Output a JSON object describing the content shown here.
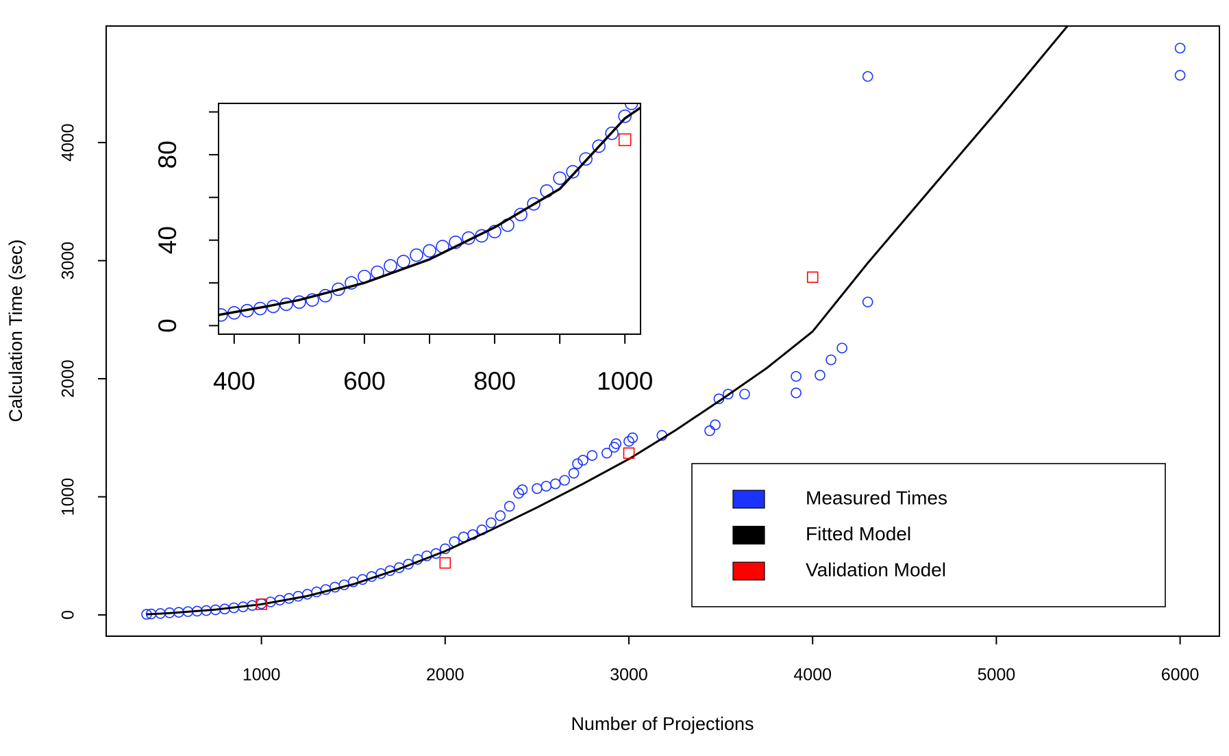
{
  "chart_data": [
    {
      "type": "scatter",
      "xlabel": "Number of Projections",
      "ylabel": "Calculation Time (sec)",
      "xlim": [
        155,
        6214
      ],
      "ylim": [
        -180,
        4987
      ],
      "xticks": [
        1000,
        2000,
        3000,
        4000,
        5000,
        6000
      ],
      "yticks": [
        0,
        1000,
        2000,
        3000,
        4000
      ],
      "legend_position": "bottom-right",
      "series": [
        {
          "name": "Measured Times",
          "color": "#1a33ff",
          "marker": "circle",
          "x": [
            375,
            400,
            450,
            500,
            550,
            600,
            650,
            700,
            750,
            800,
            850,
            900,
            950,
            1000,
            1050,
            1100,
            1150,
            1200,
            1250,
            1300,
            1350,
            1400,
            1450,
            1500,
            1550,
            1600,
            1650,
            1700,
            1750,
            1800,
            1850,
            1900,
            1950,
            2000,
            2050,
            2100,
            2150,
            2200,
            2250,
            2300,
            2350,
            2400,
            2420,
            2500,
            2550,
            2600,
            2650,
            2700,
            2720,
            2750,
            2800,
            2880,
            2920,
            2930,
            3000,
            3020,
            3180,
            3440,
            3470,
            3490,
            3540,
            3630,
            3910,
            3910,
            4040,
            4100,
            4160,
            4300,
            4300,
            6000,
            6000
          ],
          "values": [
            5,
            8,
            12,
            18,
            22,
            28,
            32,
            37,
            43,
            50,
            60,
            68,
            80,
            95,
            110,
            125,
            140,
            158,
            175,
            195,
            215,
            235,
            255,
            280,
            300,
            325,
            350,
            375,
            400,
            430,
            470,
            500,
            520,
            560,
            620,
            660,
            680,
            720,
            780,
            840,
            920,
            1030,
            1060,
            1070,
            1090,
            1110,
            1140,
            1200,
            1280,
            1310,
            1350,
            1370,
            1420,
            1450,
            1470,
            1500,
            1520,
            1560,
            1610,
            1830,
            1870,
            1870,
            1880,
            2020,
            2030,
            2160,
            2260,
            2650,
            4560,
            4570,
            4800
          ]
        },
        {
          "name": "Fitted Model",
          "color": "#000000",
          "marker": "line",
          "x": [
            375,
            500,
            750,
            1000,
            1250,
            1500,
            1750,
            2000,
            2250,
            2500,
            2750,
            3000,
            3250,
            3500,
            3750,
            4000,
            4300,
            4650,
            5000,
            5387
          ],
          "values": [
            5,
            15,
            45,
            90,
            160,
            260,
            390,
            540,
            720,
            910,
            1110,
            1320,
            1560,
            1820,
            2090,
            2400,
            2980,
            3620,
            4260,
            4987
          ]
        },
        {
          "name": "Validation Model",
          "color": "#ff0000",
          "marker": "square",
          "x": [
            1000,
            2000,
            3000,
            4000
          ],
          "values": [
            90,
            440,
            1370,
            2860
          ]
        }
      ]
    },
    {
      "type": "scatter",
      "xlim": [
        376,
        1024
      ],
      "ylim": [
        -4,
        104
      ],
      "xticks": [
        400,
        600,
        800,
        1000
      ],
      "xminor_ticks": [
        500,
        700,
        900
      ],
      "yticks": [
        0,
        40,
        80
      ],
      "yminor_ticks": [
        20,
        60,
        100
      ],
      "series": [
        {
          "color": "#1a33ff",
          "marker": "circle",
          "x": [
            380,
            400,
            420,
            440,
            460,
            480,
            500,
            520,
            540,
            560,
            580,
            600,
            620,
            640,
            660,
            680,
            700,
            720,
            740,
            760,
            780,
            800,
            820,
            840,
            860,
            880,
            900,
            920,
            940,
            960,
            980,
            1000,
            1010
          ],
          "values": [
            5,
            6,
            7,
            8,
            9,
            10,
            11,
            12,
            14,
            17,
            20,
            23,
            25,
            28,
            30,
            33,
            35,
            37,
            39,
            41,
            42,
            44,
            47,
            52,
            57,
            63,
            69,
            72,
            78,
            84,
            90,
            98,
            104
          ]
        },
        {
          "color": "#000000",
          "marker": "line",
          "x": [
            376,
            450,
            500,
            600,
            700,
            800,
            900,
            1000,
            1024
          ],
          "values": [
            5,
            9,
            12,
            20,
            31,
            46,
            64,
            97,
            102
          ]
        },
        {
          "color": "#ff0000",
          "marker": "square",
          "x": [
            1000
          ],
          "values": [
            87
          ]
        }
      ]
    }
  ]
}
